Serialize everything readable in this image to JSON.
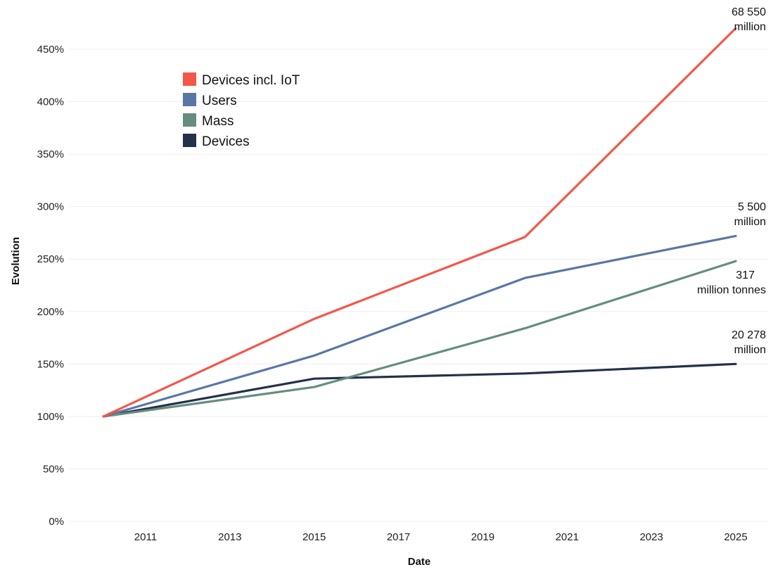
{
  "chart_data": {
    "type": "line",
    "xlabel": "Date",
    "ylabel": "Evolution",
    "xlim": [
      2010,
      2025
    ],
    "ylim": [
      0,
      450
    ],
    "x_ticks": [
      "2011",
      "2013",
      "2015",
      "2017",
      "2019",
      "2021",
      "2023",
      "2025"
    ],
    "y_ticks": [
      "0%",
      "50%",
      "100%",
      "150%",
      "200%",
      "250%",
      "300%",
      "350%",
      "400%",
      "450%"
    ],
    "grid": true,
    "legend_position": "top-left",
    "series": [
      {
        "name": "Devices incl. IoT",
        "color": "#f4574a",
        "points": [
          [
            2010,
            100
          ],
          [
            2015,
            193
          ],
          [
            2020,
            271
          ],
          [
            2025,
            470
          ]
        ],
        "end_label": [
          "68 550",
          "million"
        ]
      },
      {
        "name": "Users",
        "color": "#5a76a5",
        "points": [
          [
            2010,
            100
          ],
          [
            2015,
            158
          ],
          [
            2020,
            232
          ],
          [
            2025,
            272
          ]
        ],
        "end_label": [
          "5 500",
          "million"
        ]
      },
      {
        "name": "Mass",
        "color": "#668d80",
        "points": [
          [
            2010,
            100
          ],
          [
            2015,
            128
          ],
          [
            2020,
            184
          ],
          [
            2025,
            248
          ]
        ],
        "end_label": [
          "317",
          "million tonnes"
        ]
      },
      {
        "name": "Devices",
        "color": "#25314a",
        "points": [
          [
            2010,
            100
          ],
          [
            2015,
            136
          ],
          [
            2020,
            141
          ],
          [
            2025,
            150
          ]
        ],
        "end_label": [
          "20 278",
          "million"
        ]
      }
    ]
  }
}
